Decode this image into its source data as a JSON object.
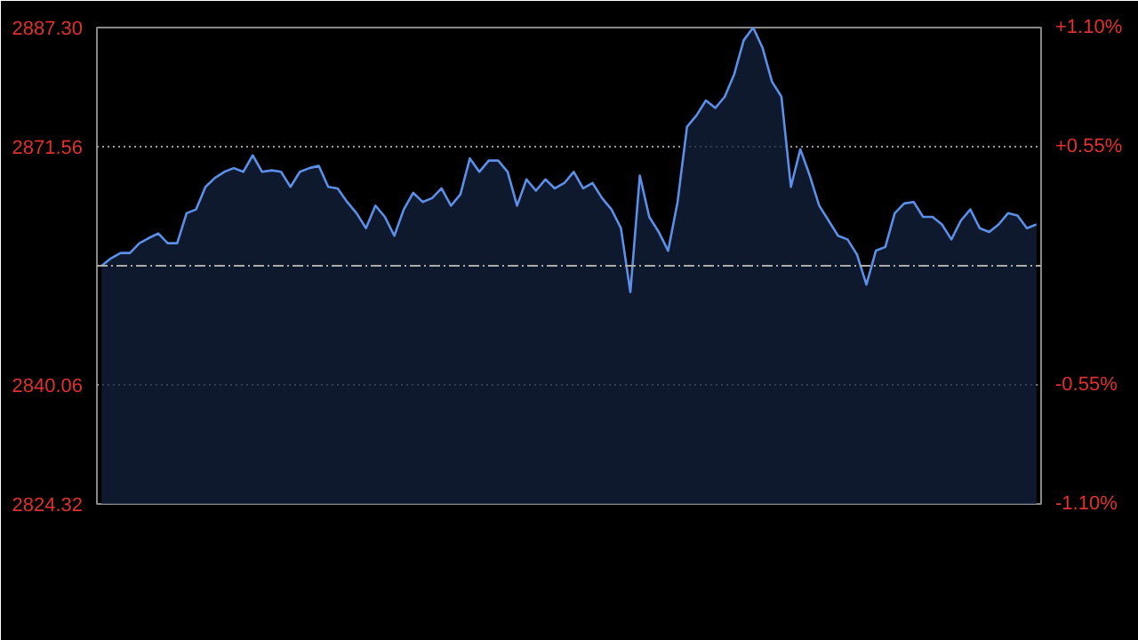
{
  "chart_data": {
    "type": "area",
    "categories": [
      null,
      null,
      null,
      null,
      null,
      null,
      null,
      null,
      null,
      null,
      null,
      null,
      null,
      null,
      null,
      null,
      null,
      null,
      null,
      null,
      null,
      null,
      null,
      null,
      null,
      null,
      null,
      null,
      null,
      null,
      null,
      null,
      null,
      null,
      null,
      null,
      null,
      null,
      null,
      null,
      null,
      null,
      null,
      null,
      null,
      null,
      null,
      null,
      null,
      null,
      null,
      null,
      null,
      null,
      null,
      null,
      null,
      null,
      null,
      null,
      null,
      null,
      null,
      null,
      null,
      null,
      null,
      null,
      null,
      null,
      null,
      null,
      null,
      null,
      null,
      null,
      null,
      null,
      null,
      null,
      null,
      null,
      null,
      null,
      null,
      null,
      null,
      null,
      null,
      null,
      null,
      null,
      null,
      null,
      null,
      null,
      null,
      null,
      null,
      null
    ],
    "series": [
      {
        "color": "#5b8fe8",
        "values": [
          2855.81,
          2856.8,
          2857.5,
          2857.5,
          2858.79,
          2859.48,
          2860.08,
          2858.79,
          2858.79,
          2862.76,
          2863.26,
          2866.24,
          2867.43,
          2868.23,
          2868.72,
          2868.23,
          2870.41,
          2868.23,
          2868.43,
          2868.23,
          2866.24,
          2868.23,
          2868.72,
          2869.02,
          2866.24,
          2866.04,
          2864.25,
          2862.76,
          2860.78,
          2863.76,
          2862.27,
          2859.78,
          2863.26,
          2865.45,
          2864.25,
          2864.75,
          2866.04,
          2863.76,
          2865.25,
          2870.01,
          2868.23,
          2869.72,
          2869.72,
          2868.23,
          2863.76,
          2867.23,
          2865.74,
          2867.23,
          2866.04,
          2866.74,
          2868.23,
          2866.04,
          2866.74,
          2864.75,
          2863.26,
          2860.78,
          2852.33,
          2867.73,
          2862.27,
          2860.28,
          2857.8,
          2864.25,
          2874.19,
          2875.68,
          2877.66,
          2876.67,
          2878.16,
          2881.14,
          2885.61,
          2887.3,
          2884.62,
          2880.15,
          2878.16,
          2866.24,
          2871.21,
          2867.73,
          2863.76,
          2861.77,
          2859.78,
          2859.29,
          2857.3,
          2853.33,
          2857.8,
          2858.29,
          2862.76,
          2864.05,
          2864.25,
          2862.27,
          2862.27,
          2861.27,
          2859.29,
          2861.77,
          2863.26,
          2860.78,
          2860.28,
          2861.27,
          2862.76,
          2862.46,
          2860.78,
          2861.27
        ]
      }
    ],
    "ylim": [
      2824.32,
      2887.3
    ],
    "yticks": [
      2824.32,
      2840.06,
      2871.56,
      {
        "value": 2887.3,
        "label": "2887.30"
      }
    ],
    "y2lim": [
      -1.1,
      1.1
    ],
    "y2ticks": [
      {
        "value": -1.1,
        "label": "-1.10%"
      },
      {
        "value": -0.55,
        "label": "-0.55%"
      },
      {
        "value": 0.55,
        "label": "+0.55%"
      },
      {
        "value": 1.1,
        "label": "+1.10%"
      }
    ],
    "ref_lines": [
      {
        "axis": "y",
        "value": 2855.81,
        "color": "#aaaaaa",
        "line_style": "dashdot"
      }
    ],
    "grid": "y",
    "tick_labels": "y"
  }
}
